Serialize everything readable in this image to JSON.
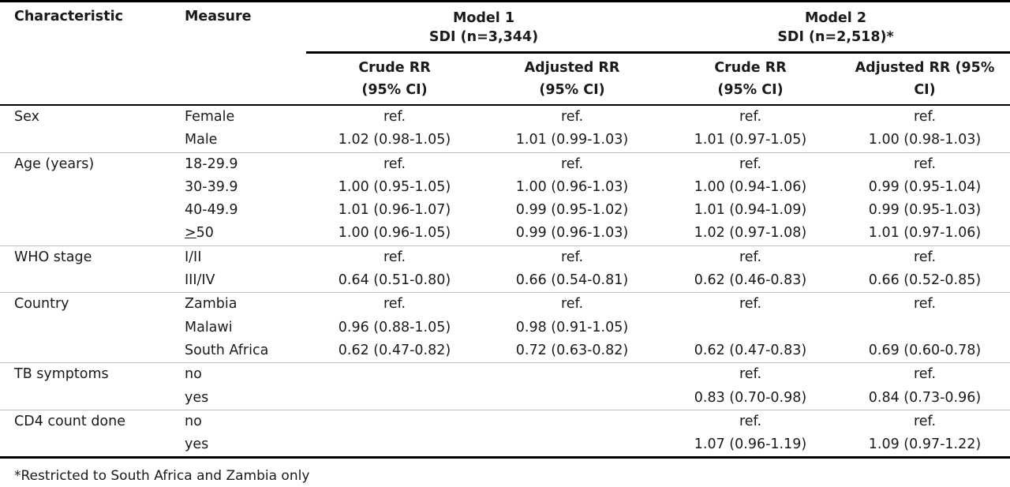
{
  "header": {
    "characteristic": "Characteristic",
    "measure": "Measure",
    "model1_title": "Model 1",
    "model1_sub": "SDI (n=3,344)",
    "model2_title": "Model 2",
    "model2_sub": "SDI (n=2,518)*",
    "crude_rr_1": "Crude RR",
    "crude_ci_1": "(95% CI)",
    "adj_rr_1": "Adjusted RR",
    "adj_ci_1": "(95% CI)",
    "crude_rr_2": "Crude RR",
    "crude_ci_2": "(95% CI)",
    "adj_rr_2": "Adjusted RR (95%",
    "adj_ci_2": "CI)"
  },
  "rows": [
    {
      "characteristic": "Sex",
      "measure": "Female",
      "m1_crude": "ref.",
      "m1_adj": "ref.",
      "m2_crude": "ref.",
      "m2_adj": "ref."
    },
    {
      "characteristic": "",
      "measure": "Male",
      "m1_crude": "1.02 (0.98-1.05)",
      "m1_adj": "1.01 (0.99-1.03)",
      "m2_crude": "1.01 (0.97-1.05)",
      "m2_adj": "1.00 (0.98-1.03)"
    },
    {
      "characteristic": "Age (years)",
      "measure": "18-29.9",
      "m1_crude": "ref.",
      "m1_adj": "ref.",
      "m2_crude": "ref.",
      "m2_adj": "ref."
    },
    {
      "characteristic": "",
      "measure": "30-39.9",
      "m1_crude": "1.00 (0.95-1.05)",
      "m1_adj": "1.00 (0.96-1.03)",
      "m2_crude": "1.00 (0.94-1.06)",
      "m2_adj": "0.99 (0.95-1.04)"
    },
    {
      "characteristic": "",
      "measure": "40-49.9",
      "m1_crude": "1.01 (0.96-1.07)",
      "m1_adj": "0.99 (0.95-1.02)",
      "m2_crude": "1.01 (0.94-1.09)",
      "m2_adj": "0.99 (0.95-1.03)"
    },
    {
      "characteristic": "",
      "measure": ">50",
      "m1_crude": "1.00 (0.96-1.05)",
      "m1_adj": "0.99 (0.96-1.03)",
      "m2_crude": "1.02 (0.97-1.08)",
      "m2_adj": "1.01 (0.97-1.06)"
    },
    {
      "characteristic": "WHO stage",
      "measure": "I/II",
      "m1_crude": "ref.",
      "m1_adj": "ref.",
      "m2_crude": "ref.",
      "m2_adj": "ref."
    },
    {
      "characteristic": "",
      "measure": "III/IV",
      "m1_crude": "0.64 (0.51-0.80)",
      "m1_adj": "0.66 (0.54-0.81)",
      "m2_crude": "0.62 (0.46-0.83)",
      "m2_adj": "0.66 (0.52-0.85)"
    },
    {
      "characteristic": "Country",
      "measure": "Zambia",
      "m1_crude": "ref.",
      "m1_adj": "ref.",
      "m2_crude": "ref.",
      "m2_adj": "ref."
    },
    {
      "characteristic": "",
      "measure": "Malawi",
      "m1_crude": "0.96 (0.88-1.05)",
      "m1_adj": "0.98 (0.91-1.05)",
      "m2_crude": "",
      "m2_adj": ""
    },
    {
      "characteristic": "",
      "measure": "South Africa",
      "m1_crude": "0.62 (0.47-0.82)",
      "m1_adj": "0.72 (0.63-0.82)",
      "m2_crude": "0.62 (0.47-0.83)",
      "m2_adj": "0.69 (0.60-0.78)"
    },
    {
      "characteristic": "TB symptoms",
      "measure": "no",
      "m1_crude": "",
      "m1_adj": "",
      "m2_crude": "ref.",
      "m2_adj": "ref."
    },
    {
      "characteristic": "",
      "measure": "yes",
      "m1_crude": "",
      "m1_adj": "",
      "m2_crude": "0.83 (0.70-0.98)",
      "m2_adj": "0.84 (0.73-0.96)"
    },
    {
      "characteristic": "CD4 count done",
      "measure": "no",
      "m1_crude": "",
      "m1_adj": "",
      "m2_crude": "ref.",
      "m2_adj": "ref."
    },
    {
      "characteristic": "",
      "measure": "yes",
      "m1_crude": "",
      "m1_adj": "",
      "m2_crude": "1.07 (0.96-1.19)",
      "m2_adj": "1.09 (0.97-1.22)"
    }
  ],
  "footnote": "*Restricted to South Africa and Zambia only"
}
